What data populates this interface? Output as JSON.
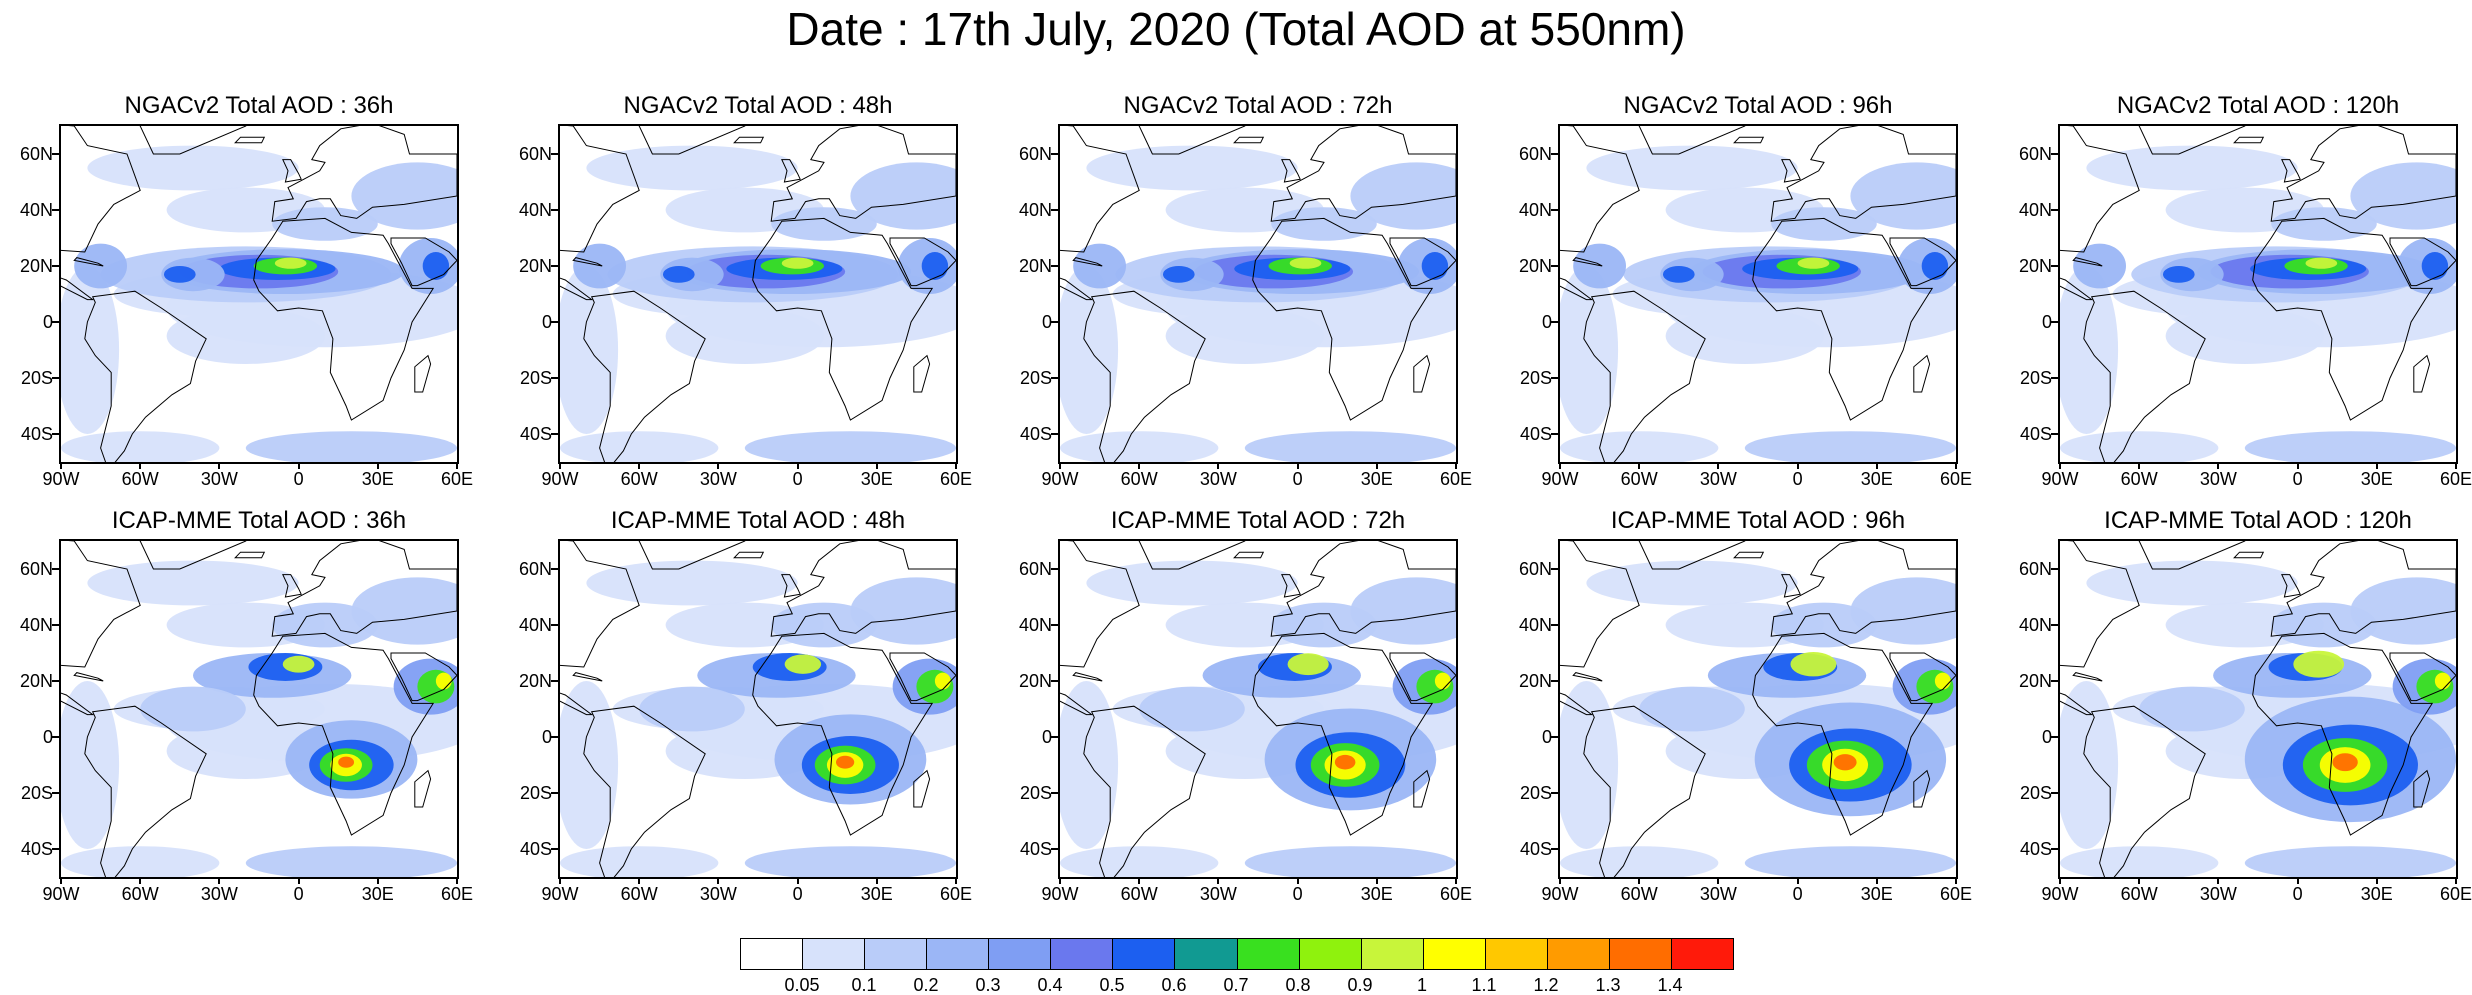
{
  "title": "Date : 17th July, 2020 (Total AOD at 550nm)",
  "latitude_labels": [
    "60N",
    "40N",
    "20N",
    "0",
    "20S",
    "40S"
  ],
  "longitude_labels": [
    "90W",
    "60W",
    "30W",
    "0",
    "30E",
    "60E"
  ],
  "panels": [
    {
      "title": "NGACv2 Total AOD : 36h",
      "model": "NGACv2",
      "lead_time": "36h"
    },
    {
      "title": "NGACv2 Total AOD : 48h",
      "model": "NGACv2",
      "lead_time": "48h"
    },
    {
      "title": "NGACv2 Total AOD : 72h",
      "model": "NGACv2",
      "lead_time": "72h"
    },
    {
      "title": "NGACv2 Total AOD : 96h",
      "model": "NGACv2",
      "lead_time": "96h"
    },
    {
      "title": "NGACv2 Total AOD : 120h",
      "model": "NGACv2",
      "lead_time": "120h"
    },
    {
      "title": "ICAP-MME Total AOD : 36h",
      "model": "ICAP-MME",
      "lead_time": "36h"
    },
    {
      "title": "ICAP-MME Total AOD : 48h",
      "model": "ICAP-MME",
      "lead_time": "48h"
    },
    {
      "title": "ICAP-MME Total AOD : 72h",
      "model": "ICAP-MME",
      "lead_time": "72h"
    },
    {
      "title": "ICAP-MME Total AOD : 96h",
      "model": "ICAP-MME",
      "lead_time": "96h"
    },
    {
      "title": "ICAP-MME Total AOD : 120h",
      "model": "ICAP-MME",
      "lead_time": "120h"
    }
  ],
  "colorbar": {
    "labels": [
      "0.05",
      "0.1",
      "0.2",
      "0.3",
      "0.4",
      "0.5",
      "0.6",
      "0.7",
      "0.8",
      "0.9",
      "1",
      "1.1",
      "1.2",
      "1.3",
      "1.4"
    ],
    "colors": [
      "#ffffff",
      "#d7e2fb",
      "#b9ccf9",
      "#9bb6f6",
      "#7f9ef3",
      "#6a78ee",
      "#1c5ff0",
      "#119a92",
      "#39e01f",
      "#8ff20d",
      "#c8f53a",
      "#ffff00",
      "#ffc800",
      "#ff9b00",
      "#ff6d00",
      "#ff1a0a"
    ]
  }
}
